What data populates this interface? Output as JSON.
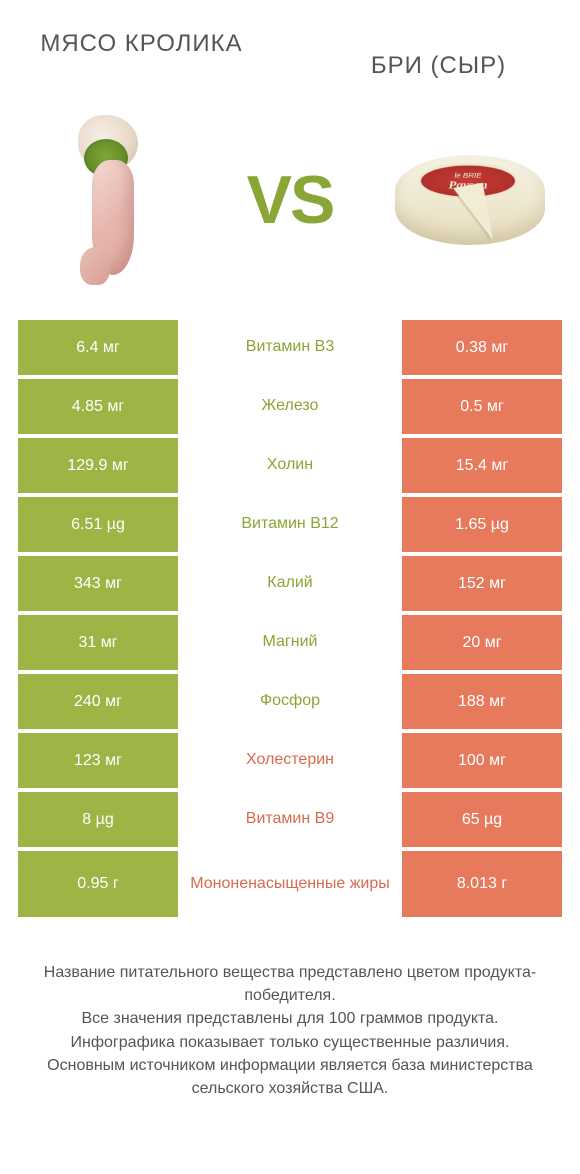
{
  "colors": {
    "left_cell_bg": "#9cb544",
    "right_cell_bg": "#e77a5d",
    "mid_text_left_wins": "#8aa636",
    "mid_text_right_wins": "#d96a4f",
    "vs_color": "#8aa636",
    "title_color": "#555555",
    "footer_color": "#555555",
    "background": "#ffffff"
  },
  "fonts": {
    "title_size": 24,
    "vs_size": 68,
    "cell_size": 16,
    "mid_size": 16,
    "footer_size": 16
  },
  "header": {
    "left_title": "МЯСО КРОЛИКА",
    "right_title": "БРИ (СЫР)",
    "vs_text": "VS",
    "brie_label_top": "le BRIE",
    "brie_label_bottom": "Paysan"
  },
  "rows": [
    {
      "left": "6.4 мг",
      "mid": "Витамин B3",
      "right": "0.38 мг",
      "winner": "left",
      "tall": false
    },
    {
      "left": "4.85 мг",
      "mid": "Железо",
      "right": "0.5 мг",
      "winner": "left",
      "tall": false
    },
    {
      "left": "129.9 мг",
      "mid": "Холин",
      "right": "15.4 мг",
      "winner": "left",
      "tall": false
    },
    {
      "left": "6.51 µg",
      "mid": "Витамин B12",
      "right": "1.65 µg",
      "winner": "left",
      "tall": false
    },
    {
      "left": "343 мг",
      "mid": "Калий",
      "right": "152 мг",
      "winner": "left",
      "tall": false
    },
    {
      "left": "31 мг",
      "mid": "Магний",
      "right": "20 мг",
      "winner": "left",
      "tall": false
    },
    {
      "left": "240 мг",
      "mid": "Фосфор",
      "right": "188 мг",
      "winner": "left",
      "tall": false
    },
    {
      "left": "123 мг",
      "mid": "Холестерин",
      "right": "100 мг",
      "winner": "right",
      "tall": false
    },
    {
      "left": "8 µg",
      "mid": "Витамин B9",
      "right": "65 µg",
      "winner": "right",
      "tall": false
    },
    {
      "left": "0.95 г",
      "mid": "Мононенасыщенные жиры",
      "right": "8.013 г",
      "winner": "right",
      "tall": true
    }
  ],
  "footer": {
    "line1": "Название питательного вещества представлено цветом продукта-победителя.",
    "line2": "Все значения представлены для 100 граммов продукта.",
    "line3": "Инфографика показывает только существенные различия.",
    "line4": "Основным источником информации является база министерства сельского хозяйства США."
  }
}
